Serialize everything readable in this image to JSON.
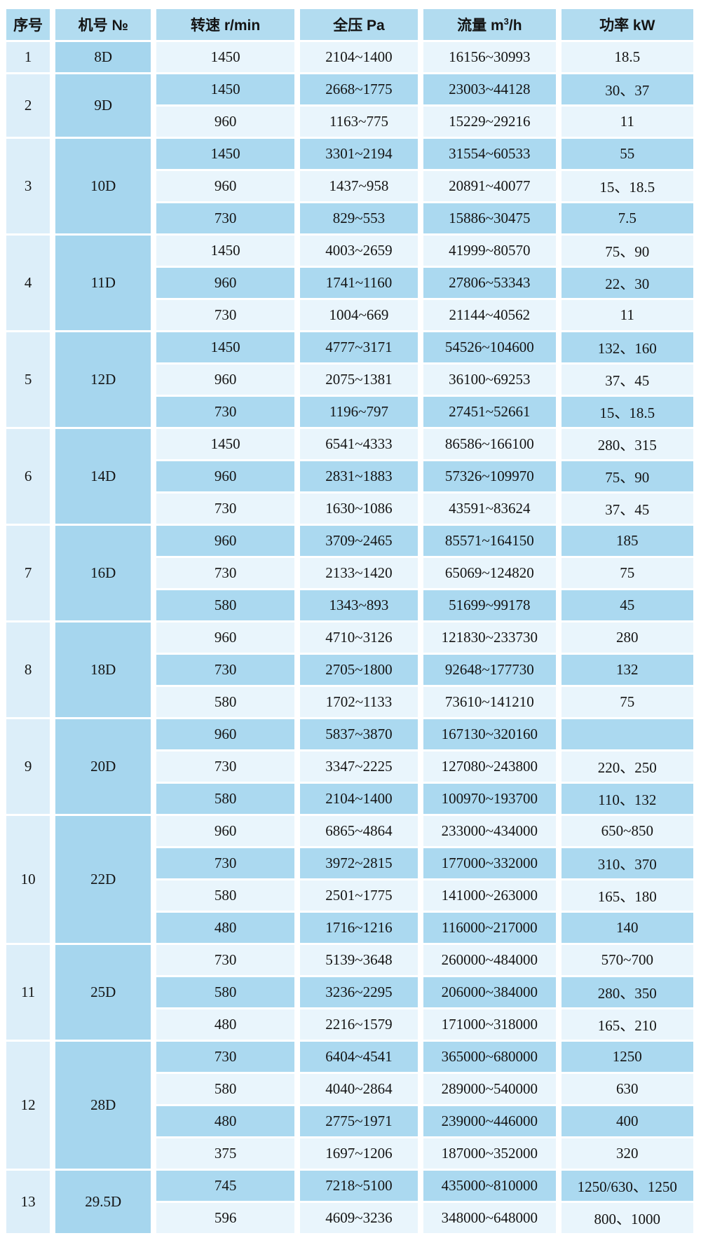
{
  "header": {
    "seq": "序号",
    "model": "机号 №",
    "speed": "转速 r/min",
    "pressure": "全压 Pa",
    "flow_pre": "流量 m",
    "flow_sup": "3",
    "flow_post": "/h",
    "power": "功率 kW"
  },
  "colors": {
    "header_bg": "#b2dcf0",
    "row_light": "#e9f5fc",
    "row_dark": "#abd9f0",
    "seq_col_bg": "#dceef9",
    "model_col_bg": "#a6d6ee",
    "text": "#141414",
    "gap": "#ffffff"
  },
  "chart_data": {
    "type": "table",
    "columns": [
      "序号",
      "机号 №",
      "转速 r/min",
      "全压 Pa",
      "流量 m3/h",
      "功率 kW"
    ],
    "layout": "serial and model columns are merged cells spanning each group; data rows alternate light/dark blue",
    "groups": [
      {
        "no": "1",
        "model": "8D",
        "rows": [
          [
            "1450",
            "2104~1400",
            "16156~30993",
            "18.5"
          ]
        ]
      },
      {
        "no": "2",
        "model": "9D",
        "rows": [
          [
            "1450",
            "2668~1775",
            "23003~44128",
            "30、37"
          ],
          [
            "960",
            "1163~775",
            "15229~29216",
            "11"
          ]
        ]
      },
      {
        "no": "3",
        "model": "10D",
        "rows": [
          [
            "1450",
            "3301~2194",
            "31554~60533",
            "55"
          ],
          [
            "960",
            "1437~958",
            "20891~40077",
            "15、18.5"
          ],
          [
            "730",
            "829~553",
            "15886~30475",
            "7.5"
          ]
        ]
      },
      {
        "no": "4",
        "model": "11D",
        "rows": [
          [
            "1450",
            "4003~2659",
            "41999~80570",
            "75、90"
          ],
          [
            "960",
            "1741~1160",
            "27806~53343",
            "22、30"
          ],
          [
            "730",
            "1004~669",
            "21144~40562",
            "11"
          ]
        ]
      },
      {
        "no": "5",
        "model": "12D",
        "rows": [
          [
            "1450",
            "4777~3171",
            "54526~104600",
            "132、160"
          ],
          [
            "960",
            "2075~1381",
            "36100~69253",
            "37、45"
          ],
          [
            "730",
            "1196~797",
            "27451~52661",
            "15、18.5"
          ]
        ]
      },
      {
        "no": "6",
        "model": "14D",
        "rows": [
          [
            "1450",
            "6541~4333",
            "86586~166100",
            "280、315"
          ],
          [
            "960",
            "2831~1883",
            "57326~109970",
            "75、90"
          ],
          [
            "730",
            "1630~1086",
            "43591~83624",
            "37、45"
          ]
        ]
      },
      {
        "no": "7",
        "model": "16D",
        "rows": [
          [
            "960",
            "3709~2465",
            "85571~164150",
            "185"
          ],
          [
            "730",
            "2133~1420",
            "65069~124820",
            "75"
          ],
          [
            "580",
            "1343~893",
            "51699~99178",
            "45"
          ]
        ]
      },
      {
        "no": "8",
        "model": "18D",
        "rows": [
          [
            "960",
            "4710~3126",
            "121830~233730",
            "280"
          ],
          [
            "730",
            "2705~1800",
            "92648~177730",
            "132"
          ],
          [
            "580",
            "1702~1133",
            "73610~141210",
            "75"
          ]
        ]
      },
      {
        "no": "9",
        "model": "20D",
        "rows": [
          [
            "960",
            "5837~3870",
            "167130~320160",
            ""
          ],
          [
            "730",
            "3347~2225",
            "127080~243800",
            "220、250"
          ],
          [
            "580",
            "2104~1400",
            "100970~193700",
            "110、132"
          ]
        ]
      },
      {
        "no": "10",
        "model": "22D",
        "rows": [
          [
            "960",
            "6865~4864",
            "233000~434000",
            "650~850"
          ],
          [
            "730",
            "3972~2815",
            "177000~332000",
            "310、370"
          ],
          [
            "580",
            "2501~1775",
            "141000~263000",
            "165、180"
          ],
          [
            "480",
            "1716~1216",
            "116000~217000",
            "140"
          ]
        ]
      },
      {
        "no": "11",
        "model": "25D",
        "rows": [
          [
            "730",
            "5139~3648",
            "260000~484000",
            "570~700"
          ],
          [
            "580",
            "3236~2295",
            "206000~384000",
            "280、350"
          ],
          [
            "480",
            "2216~1579",
            "171000~318000",
            "165、210"
          ]
        ]
      },
      {
        "no": "12",
        "model": "28D",
        "rows": [
          [
            "730",
            "6404~4541",
            "365000~680000",
            "1250"
          ],
          [
            "580",
            "4040~2864",
            "289000~540000",
            "630"
          ],
          [
            "480",
            "2775~1971",
            "239000~446000",
            "400"
          ],
          [
            "375",
            "1697~1206",
            "187000~352000",
            "320"
          ]
        ]
      },
      {
        "no": "13",
        "model": "29.5D",
        "rows": [
          [
            "745",
            "7218~5100",
            "435000~810000",
            "1250/630、1250"
          ],
          [
            "596",
            "4609~3236",
            "348000~648000",
            "800、1000"
          ]
        ]
      }
    ]
  }
}
